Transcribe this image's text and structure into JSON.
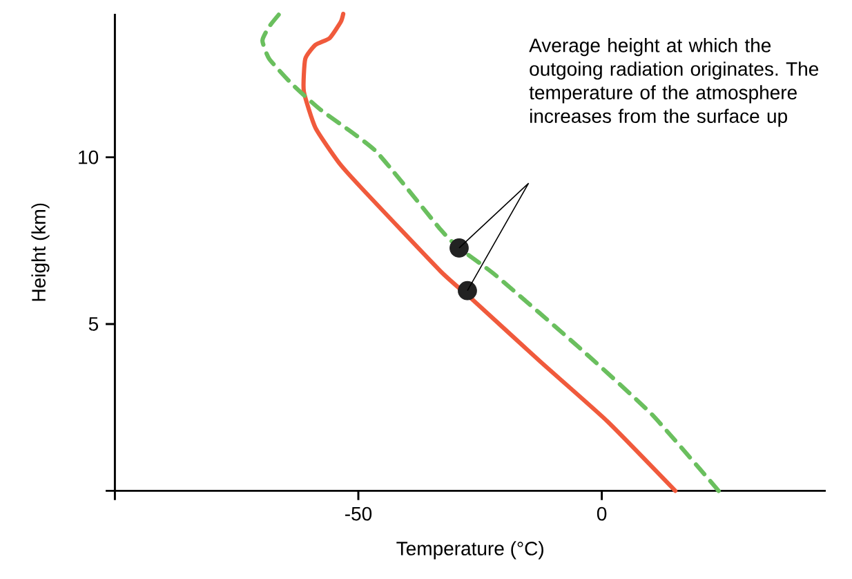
{
  "chart_data": {
    "type": "line",
    "xlabel": "Temperature (°C)",
    "ylabel": "Height (km)",
    "xlim": [
      -100,
      46
    ],
    "ylim": [
      0,
      14.3
    ],
    "xticks": [
      {
        "value": -100,
        "label": null
      },
      -50,
      0
    ],
    "yticks": [
      {
        "value": 0,
        "label": null
      },
      5,
      10
    ],
    "grid": false,
    "legend": false,
    "annotations": [
      "Average height at which the outgoing radiation originates. The temperature of the atmosphere increases from the surface up"
    ],
    "series": [
      {
        "color": "#f05a3c",
        "line_style": "solid",
        "marker": "none",
        "x": [
          15.1,
          1.1,
          -12.6,
          -26.3,
          -33.1,
          -49.3,
          -54.0,
          -58.8,
          -61.2,
          -60.9,
          -58.8,
          -55.9,
          -53.6,
          -53.1
        ],
        "values": [
          0,
          2.09,
          3.87,
          5.7,
          6.58,
          9.07,
          9.84,
          10.88,
          11.98,
          12.95,
          13.37,
          13.57,
          14.06,
          14.3
        ]
      },
      {
        "color": "#6abf5e",
        "line_style": "dashed",
        "marker": "none",
        "x": [
          24.0,
          10.3,
          -4.6,
          -21.7,
          -29.3,
          -33.1,
          -46.4,
          -57.8,
          -63.6,
          -68.3,
          -69.7,
          -68.3,
          -66.2
        ],
        "values": [
          0,
          2.29,
          4.29,
          6.45,
          7.28,
          7.83,
          10.18,
          11.43,
          12.19,
          12.95,
          13.5,
          13.92,
          14.3
        ]
      },
      {
        "type": "scatter",
        "color": "#222222",
        "marker": "circle",
        "x": [
          -29.3,
          -27.6
        ],
        "values": [
          7.28,
          6.0
        ]
      }
    ]
  }
}
